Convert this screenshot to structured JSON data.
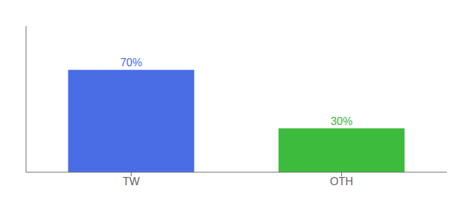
{
  "chart_data": {
    "type": "bar",
    "categories": [
      "TW",
      "OTH"
    ],
    "values": [
      70,
      30
    ],
    "value_labels": [
      "70%",
      "30%"
    ],
    "colors": [
      "#4a6de5",
      "#3dbb3d"
    ],
    "ylim": [
      0,
      100
    ],
    "grid": false,
    "data_labels": true,
    "tick_labels": "x"
  }
}
